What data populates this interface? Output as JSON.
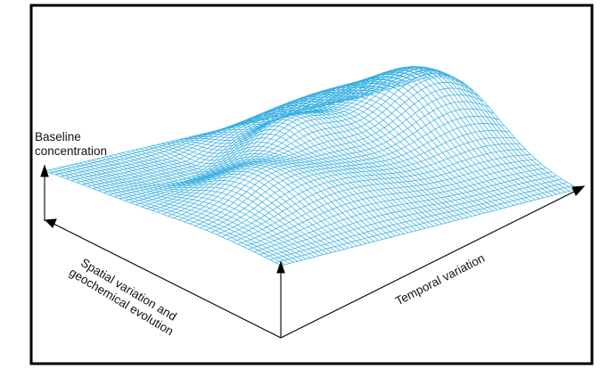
{
  "labels": {
    "baseline_line1": "Baseline",
    "baseline_line2": "concentration",
    "spatial_line1": "Spatial variation and",
    "spatial_line2": "geochemical evolution",
    "temporal": "Temporal variation"
  },
  "colors": {
    "mesh": "#34aee0",
    "axis": "#000000",
    "border": "#000000",
    "background": "#ffffff"
  }
}
